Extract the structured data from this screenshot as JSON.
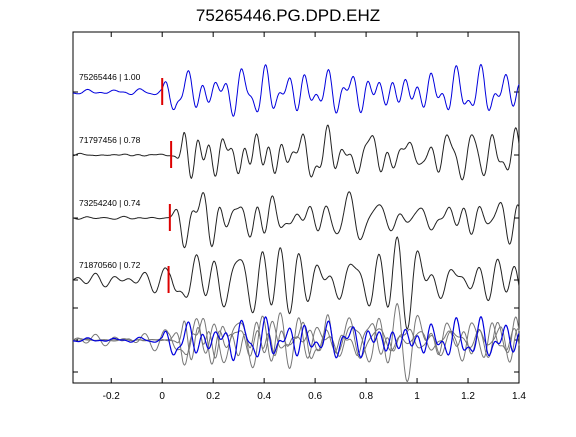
{
  "chart_data": {
    "type": "line",
    "title": "75265446.PG.DPD.EHZ",
    "xlabel": "",
    "ylabel": "",
    "xlim": [
      -0.35,
      1.4
    ],
    "x_ticks": [
      -0.2,
      0,
      0.2,
      0.4,
      0.6,
      0.8,
      1,
      1.2,
      1.4
    ],
    "x_tick_labels": [
      "-0.2",
      "0",
      "0.2",
      "0.4",
      "0.6",
      "0.8",
      "1",
      "1.2",
      "1.4"
    ],
    "grid": false,
    "colors": {
      "reference": "#0000dd",
      "trace": "#222222",
      "overlay": "#777777",
      "pick": "#dd0000"
    },
    "series": [
      {
        "label": "75265446 | 1.00",
        "pick_time": 0.0,
        "color": "reference"
      },
      {
        "label": "71797456 | 0.78",
        "pick_time": 0.035,
        "color": "trace"
      },
      {
        "label": "73254240 | 0.74",
        "pick_time": 0.03,
        "color": "trace"
      },
      {
        "label": "71870560 | 0.72",
        "pick_time": 0.025,
        "color": "trace"
      }
    ]
  }
}
